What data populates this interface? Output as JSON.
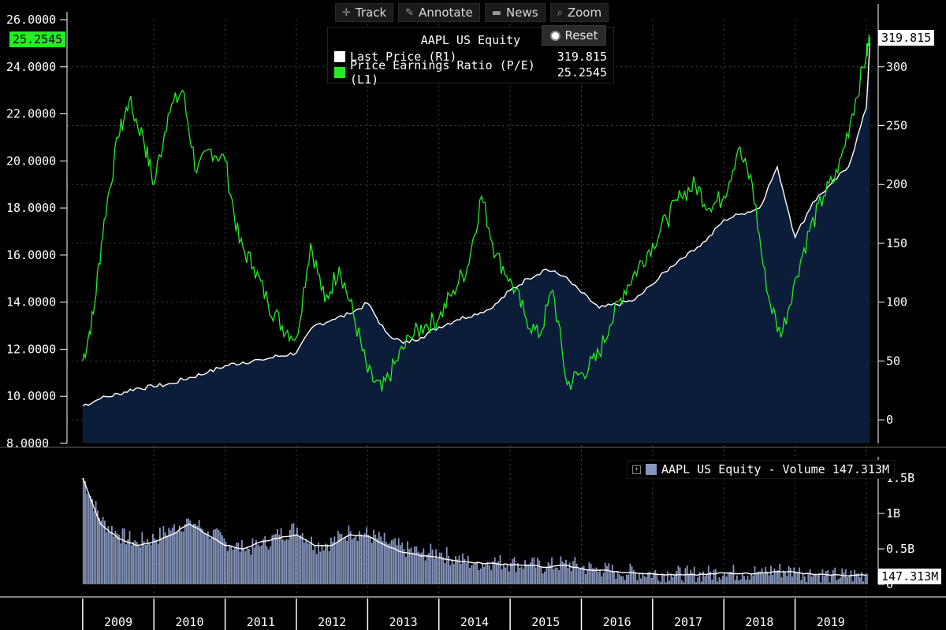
{
  "toolbar": {
    "track": "Track",
    "annotate": "Annotate",
    "news": "News",
    "zoom": "Zoom",
    "reset": "Reset"
  },
  "legend": {
    "title": "AAPL US Equity",
    "items": [
      {
        "label": "Last Price  (R1)",
        "value": "319.815",
        "color": "#ffffff"
      },
      {
        "label": "Price Earnings Ratio (P/E)  (L1)",
        "value": "25.2545",
        "color": "#22ee22"
      }
    ]
  },
  "volume_legend": {
    "label": "AAPL US Equity - Volume 147.313M",
    "color": "#8796bc"
  },
  "badges": {
    "pe_last": "25.2545",
    "price_last": "319.815",
    "volume_last": "147.313M"
  },
  "colors": {
    "background": "#000000",
    "price_fill": "#0c1d3a",
    "price_line": "#ffffff",
    "pe_line": "#22ee22",
    "volume_fill": "#8796bc",
    "volume_avg_line": "#ffffff",
    "axis_text": "#ffffff"
  },
  "chart_data": [
    {
      "type": "line",
      "title": "AAPL US Equity",
      "x_labels": [
        "2009",
        "2010",
        "2011",
        "2012",
        "2013",
        "2014",
        "2015",
        "2016",
        "2017",
        "2018",
        "2019"
      ],
      "left_axis": {
        "ticks": [
          "8.0000",
          "10.0000",
          "12.0000",
          "14.0000",
          "16.0000",
          "18.0000",
          "20.0000",
          "22.0000",
          "24.0000",
          "26.0000"
        ],
        "range": [
          8,
          26
        ]
      },
      "right_axis": {
        "ticks": [
          "0",
          "50",
          "100",
          "150",
          "200",
          "250",
          "300"
        ],
        "range": [
          -20,
          340
        ]
      },
      "series": [
        {
          "name": "Last Price  (R1)",
          "axis": "right",
          "style": "area",
          "x": [
            2009.0,
            2009.25,
            2009.5,
            2009.75,
            2010.0,
            2010.25,
            2010.5,
            2010.75,
            2011.0,
            2011.25,
            2011.5,
            2011.75,
            2012.0,
            2012.25,
            2012.5,
            2012.75,
            2013.0,
            2013.25,
            2013.5,
            2013.75,
            2014.0,
            2014.25,
            2014.5,
            2014.75,
            2015.0,
            2015.25,
            2015.5,
            2015.75,
            2016.0,
            2016.25,
            2016.5,
            2016.75,
            2017.0,
            2017.25,
            2017.5,
            2017.75,
            2018.0,
            2018.25,
            2018.5,
            2018.75,
            2019.0,
            2019.25,
            2019.5,
            2019.75,
            2020.0,
            2020.05
          ],
          "values": [
            12,
            18,
            22,
            27,
            28,
            31,
            36,
            40,
            46,
            49,
            51,
            54,
            57,
            80,
            85,
            90,
            99,
            75,
            65,
            70,
            79,
            85,
            90,
            95,
            110,
            120,
            128,
            122,
            108,
            95,
            98,
            102,
            115,
            130,
            142,
            152,
            170,
            175,
            180,
            215,
            155,
            185,
            200,
            215,
            265,
            320
          ]
        },
        {
          "name": "Price Earnings Ratio (P/E)  (L1)",
          "axis": "left",
          "style": "line",
          "x": [
            2009.0,
            2009.15,
            2009.3,
            2009.5,
            2009.65,
            2009.85,
            2010.0,
            2010.2,
            2010.4,
            2010.6,
            2010.8,
            2011.0,
            2011.2,
            2011.4,
            2011.6,
            2011.8,
            2012.0,
            2012.2,
            2012.4,
            2012.6,
            2012.8,
            2013.0,
            2013.2,
            2013.4,
            2013.6,
            2013.8,
            2014.0,
            2014.2,
            2014.4,
            2014.6,
            2014.8,
            2015.0,
            2015.2,
            2015.4,
            2015.6,
            2015.8,
            2016.0,
            2016.2,
            2016.4,
            2016.6,
            2016.8,
            2017.0,
            2017.2,
            2017.4,
            2017.6,
            2017.8,
            2018.0,
            2018.2,
            2018.4,
            2018.6,
            2018.8,
            2019.0,
            2019.2,
            2019.4,
            2019.6,
            2019.8,
            2020.0,
            2020.05
          ],
          "values": [
            11.5,
            13.5,
            17.5,
            21.0,
            22.5,
            21.0,
            19.0,
            22.0,
            23.0,
            19.5,
            20.5,
            20.0,
            16.5,
            15.5,
            14.0,
            13.0,
            12.5,
            16.5,
            14.0,
            15.5,
            13.5,
            11.0,
            10.2,
            11.5,
            12.5,
            13.0,
            13.3,
            14.5,
            15.5,
            18.5,
            16.0,
            15.0,
            13.5,
            12.5,
            14.5,
            10.5,
            11.0,
            11.5,
            13.0,
            14.5,
            15.5,
            16.5,
            17.5,
            18.5,
            19.0,
            18.0,
            18.5,
            20.5,
            19.0,
            14.5,
            12.5,
            15.0,
            17.0,
            18.5,
            19.5,
            22.0,
            24.5,
            25.25
          ]
        }
      ]
    },
    {
      "type": "bar",
      "title": "AAPL US Equity - Volume 147.313M",
      "x_labels": [
        "2009",
        "2010",
        "2011",
        "2012",
        "2013",
        "2014",
        "2015",
        "2016",
        "2017",
        "2018",
        "2019"
      ],
      "right_axis": {
        "ticks": [
          "0",
          "0.5B",
          "1B",
          "1.5B"
        ],
        "range": [
          0,
          1.8
        ]
      },
      "series": [
        {
          "name": "Volume",
          "x": [
            2009.0,
            2009.25,
            2009.5,
            2009.75,
            2010.0,
            2010.25,
            2010.5,
            2010.75,
            2011.0,
            2011.25,
            2011.5,
            2011.75,
            2012.0,
            2012.25,
            2012.5,
            2012.75,
            2013.0,
            2013.25,
            2013.5,
            2013.75,
            2014.0,
            2014.25,
            2014.5,
            2014.75,
            2015.0,
            2015.25,
            2015.5,
            2015.75,
            2016.0,
            2016.25,
            2016.5,
            2016.75,
            2017.0,
            2017.25,
            2017.5,
            2017.75,
            2018.0,
            2018.25,
            2018.5,
            2018.75,
            2019.0,
            2019.25,
            2019.5,
            2019.75,
            2020.0
          ],
          "values": [
            1.5,
            0.9,
            0.7,
            0.6,
            0.65,
            0.8,
            0.9,
            0.75,
            0.6,
            0.5,
            0.55,
            0.7,
            0.8,
            0.55,
            0.6,
            0.75,
            0.7,
            0.6,
            0.5,
            0.45,
            0.45,
            0.35,
            0.3,
            0.32,
            0.3,
            0.28,
            0.25,
            0.3,
            0.25,
            0.2,
            0.18,
            0.17,
            0.16,
            0.15,
            0.14,
            0.15,
            0.17,
            0.16,
            0.18,
            0.2,
            0.18,
            0.15,
            0.13,
            0.12,
            0.15
          ]
        },
        {
          "name": "Volume Average",
          "style": "line",
          "x": [
            2009.0,
            2009.25,
            2009.5,
            2009.75,
            2010.0,
            2010.25,
            2010.5,
            2010.75,
            2011.0,
            2011.25,
            2011.5,
            2011.75,
            2012.0,
            2012.25,
            2012.5,
            2012.75,
            2013.0,
            2013.25,
            2013.5,
            2013.75,
            2014.0,
            2014.25,
            2014.5,
            2014.75,
            2015.0,
            2015.25,
            2015.5,
            2015.75,
            2016.0,
            2016.25,
            2016.5,
            2016.75,
            2017.0,
            2017.25,
            2017.5,
            2017.75,
            2018.0,
            2018.25,
            2018.5,
            2018.75,
            2019.0,
            2019.25,
            2019.5,
            2019.75,
            2020.0
          ],
          "values": [
            1.5,
            0.85,
            0.65,
            0.55,
            0.6,
            0.7,
            0.85,
            0.7,
            0.55,
            0.5,
            0.6,
            0.65,
            0.7,
            0.55,
            0.55,
            0.7,
            0.68,
            0.55,
            0.45,
            0.4,
            0.38,
            0.33,
            0.3,
            0.3,
            0.27,
            0.27,
            0.24,
            0.27,
            0.22,
            0.2,
            0.18,
            0.16,
            0.15,
            0.14,
            0.14,
            0.14,
            0.16,
            0.15,
            0.16,
            0.18,
            0.17,
            0.14,
            0.13,
            0.12,
            0.13
          ]
        }
      ]
    }
  ]
}
